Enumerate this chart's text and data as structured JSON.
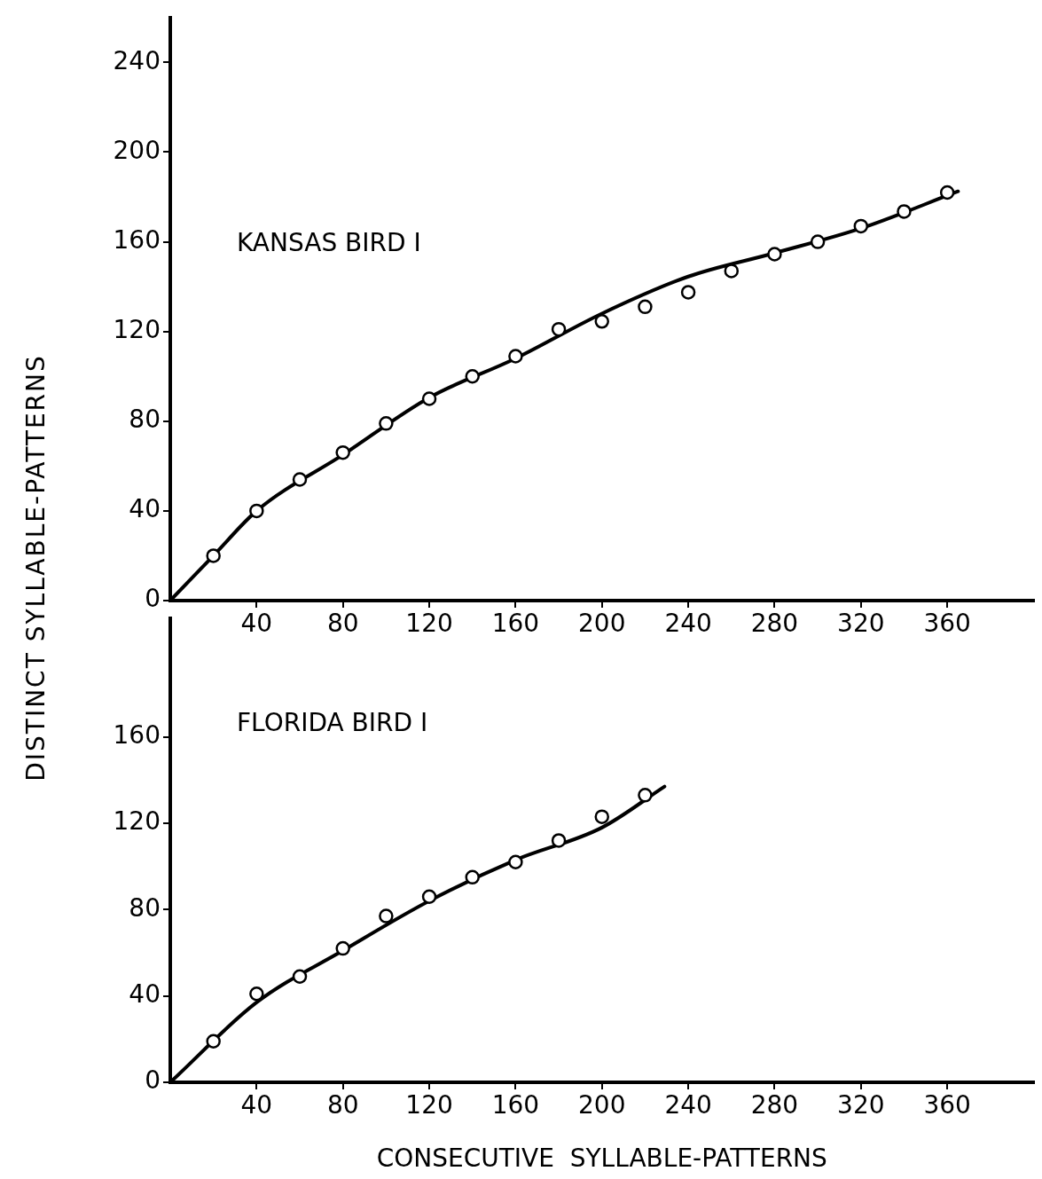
{
  "chart_data": [
    {
      "type": "scatter",
      "title": "KANSAS BIRD I",
      "ylabel": "DISTINCT SYLLABLE-PATTERNS",
      "xlim": [
        0,
        400
      ],
      "ylim": [
        0,
        260
      ],
      "xticks": [
        40,
        80,
        120,
        160,
        200,
        240,
        280,
        320,
        360
      ],
      "yticks": [
        0,
        40,
        80,
        120,
        160,
        200,
        240
      ],
      "grid": false,
      "legend": false,
      "tick_labels": "xy",
      "series": [
        {
          "marker": "circle",
          "color": "#000000",
          "x": [
            20,
            40,
            60,
            80,
            100,
            120,
            140,
            160,
            180,
            200,
            220,
            240,
            260,
            280,
            300,
            320,
            340,
            360
          ],
          "values": [
            20,
            40,
            54,
            66,
            79,
            90,
            100,
            109,
            121,
            124.5,
            131,
            137.5,
            147,
            154.5,
            160,
            167,
            173.5,
            182
          ]
        },
        {
          "type": "line",
          "marker": "none",
          "line_style": "solid",
          "color": "#000000",
          "x": [
            0,
            20,
            40,
            80,
            120,
            160,
            200,
            240,
            280,
            320,
            365
          ],
          "values": [
            0,
            20,
            40,
            65,
            90.5,
            108,
            128,
            144.5,
            155,
            166,
            182.5
          ]
        }
      ]
    },
    {
      "type": "scatter",
      "title": "FLORIDA BIRD I",
      "xlabel": "CONSECUTIVE  SYLLABLE-PATTERNS",
      "xlim": [
        0,
        400
      ],
      "ylim": [
        0,
        215
      ],
      "xticks": [
        40,
        80,
        120,
        160,
        200,
        240,
        280,
        320,
        360
      ],
      "yticks": [
        0,
        40,
        80,
        120,
        160
      ],
      "grid": false,
      "legend": false,
      "series": [
        {
          "marker": "circle",
          "color": "#000000",
          "x": [
            20,
            40,
            60,
            80,
            100,
            120,
            140,
            160,
            180,
            200,
            220
          ],
          "values": [
            19,
            41,
            49,
            62,
            77,
            86,
            95,
            102,
            112,
            123,
            133
          ]
        },
        {
          "type": "line",
          "marker": "none",
          "line_style": "solid",
          "color": "#000000",
          "x": [
            0,
            40,
            80,
            120,
            160,
            200,
            229
          ],
          "values": [
            0,
            37,
            61,
            84,
            103,
            118,
            137
          ]
        }
      ]
    }
  ]
}
